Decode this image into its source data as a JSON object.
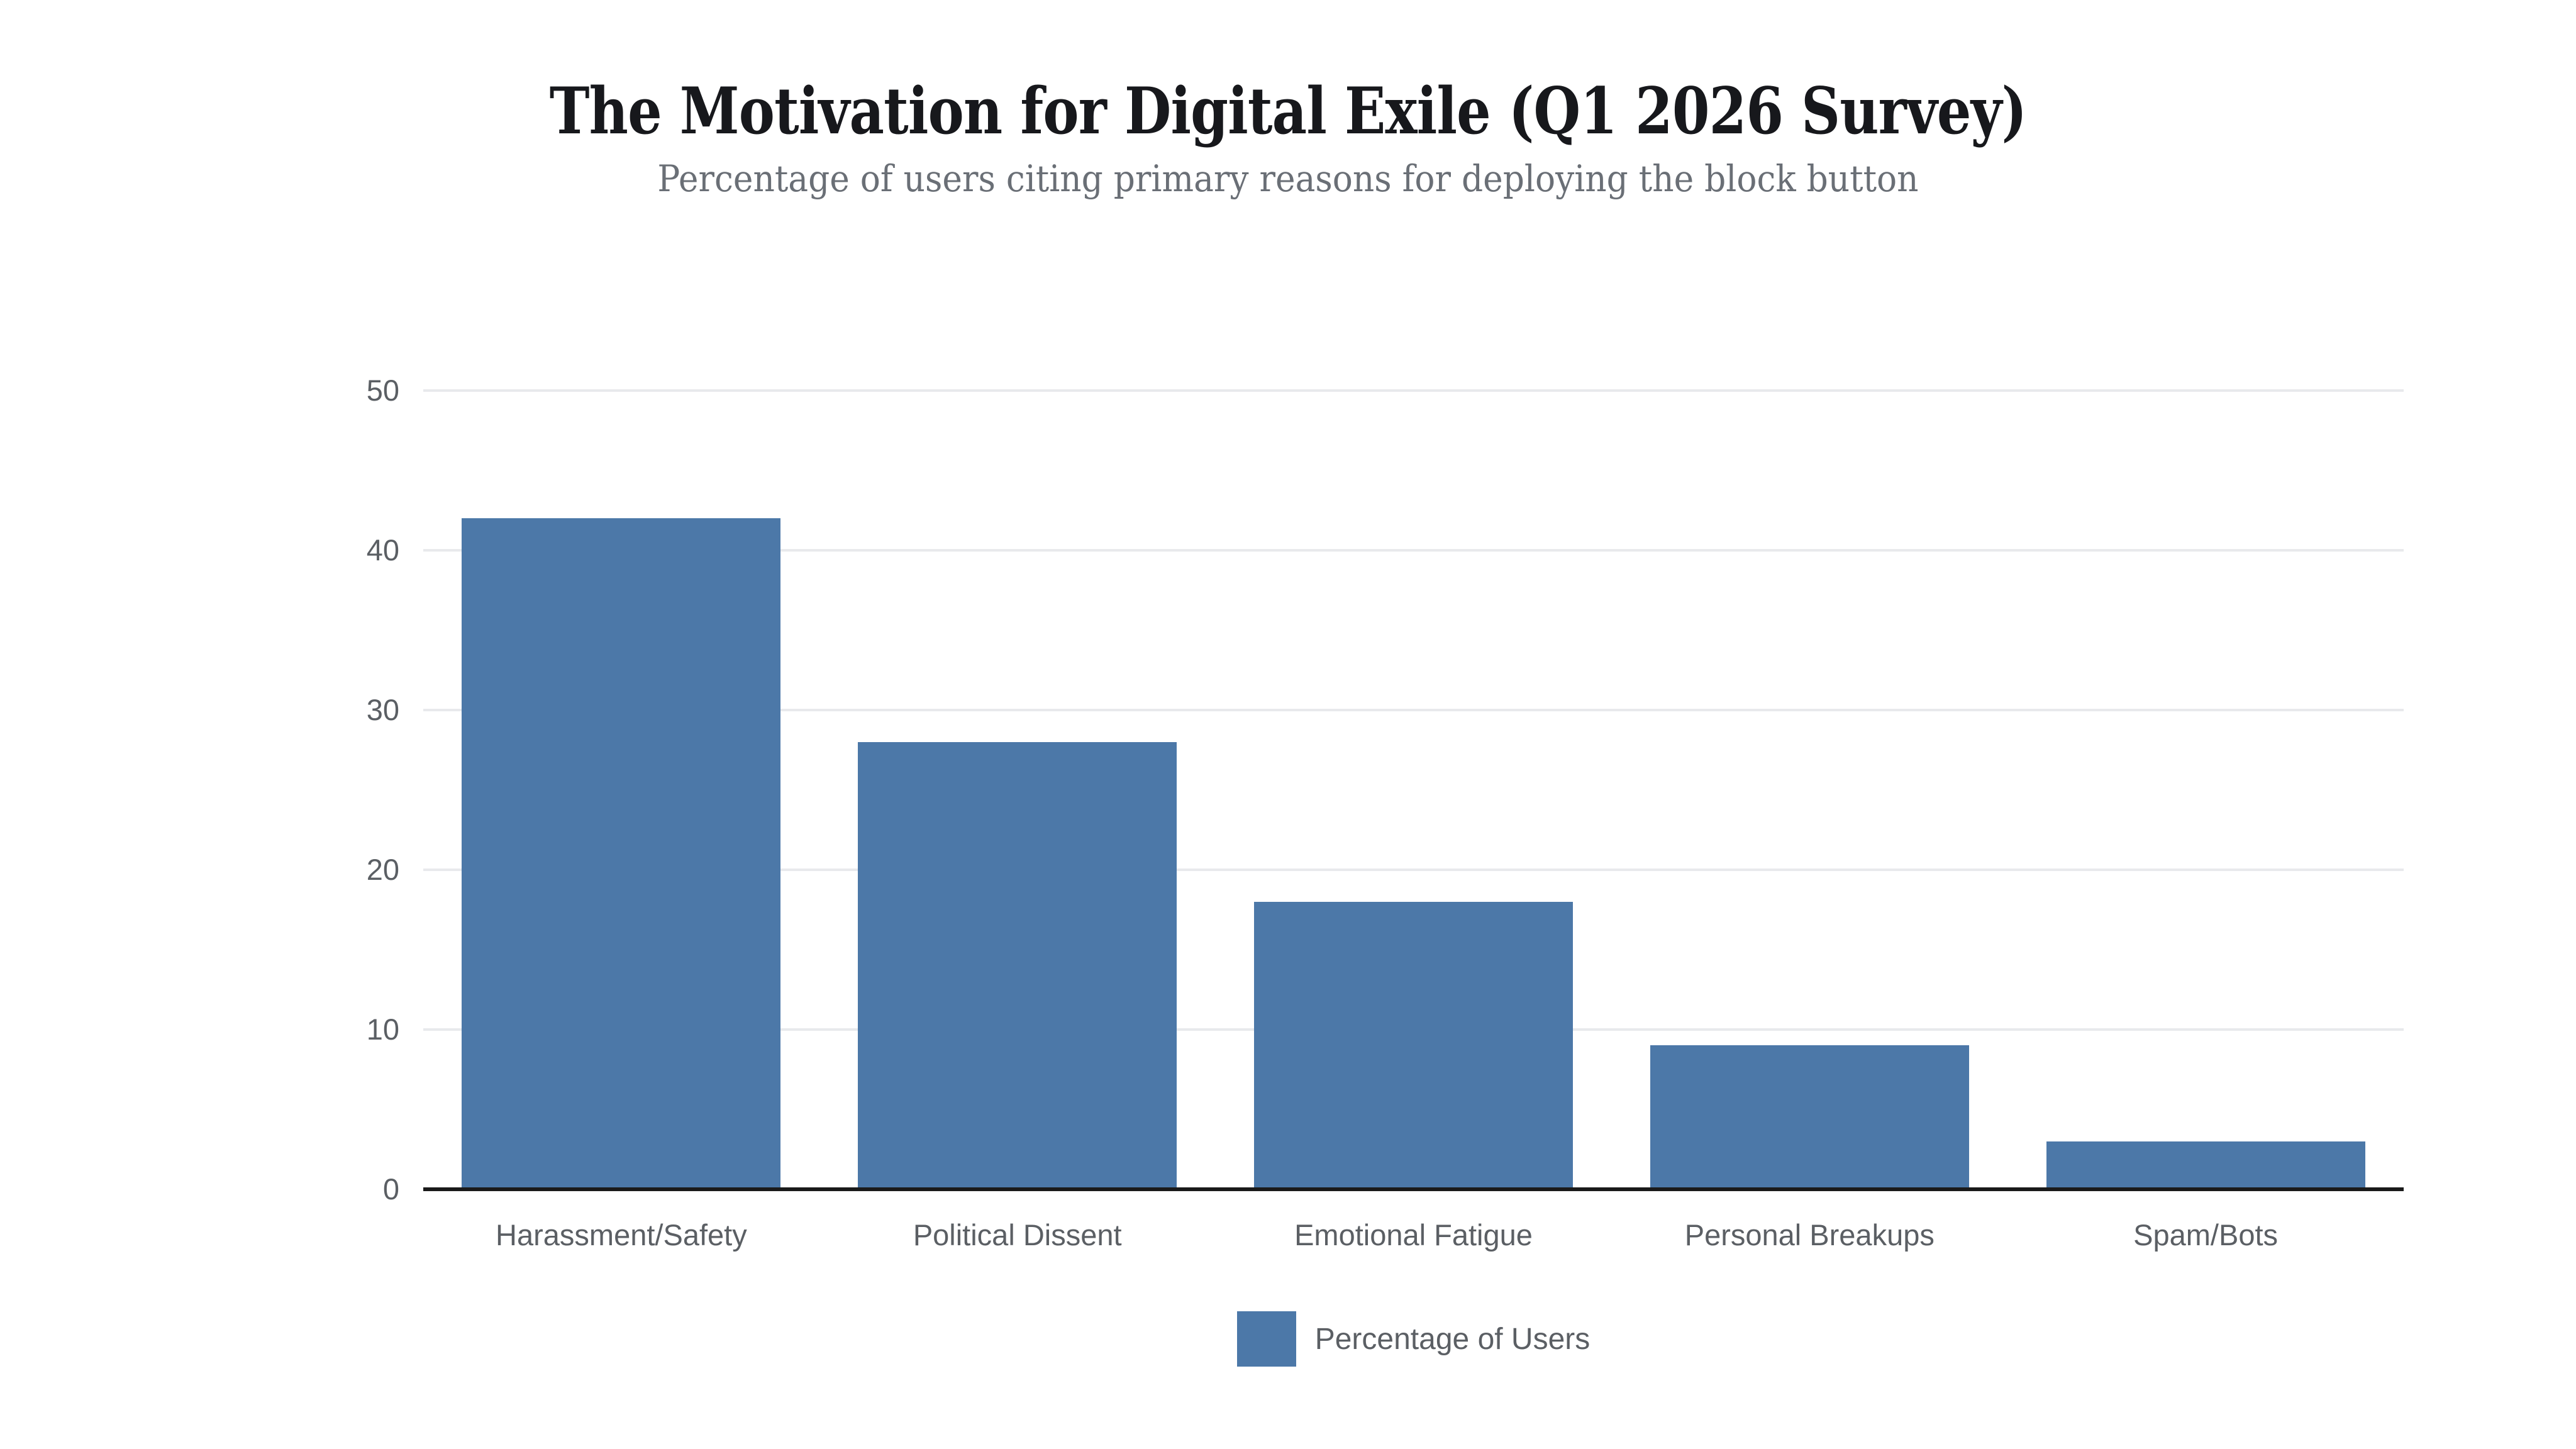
{
  "header": {
    "title": "The Motivation for Digital Exile (Q1 2026 Survey)",
    "subtitle": "Percentage of users citing primary reasons for deploying the block button"
  },
  "legend": {
    "label": "Percentage of Users"
  },
  "colors": {
    "background": "#ffffff",
    "bar": "#4c78a8",
    "gridline": "#e8e9ec",
    "axis_domain": "#1a1a1a",
    "axis_label": "#5b5f64",
    "title": "#17181c",
    "subtitle": "#6a6f76"
  },
  "chart_data": {
    "type": "bar",
    "title": "The Motivation for Digital Exile (Q1 2026 Survey)",
    "subtitle": "Percentage of users citing primary reasons for deploying the block button",
    "categories": [
      "Harassment/Safety",
      "Political Dissent",
      "Emotional Fatigue",
      "Personal Breakups",
      "Spam/Bots"
    ],
    "series": [
      {
        "name": "Percentage of Users",
        "values": [
          42,
          28,
          18,
          9,
          3
        ]
      }
    ],
    "xlabel": "",
    "ylabel": "",
    "ylim": [
      0,
      50
    ],
    "yticks": [
      0,
      10,
      20,
      30,
      40,
      50
    ],
    "grid": true,
    "legend_position": "bottom-center",
    "bar_color": "#4c78a8",
    "bar_slot_fill_ratio": 0.805
  }
}
